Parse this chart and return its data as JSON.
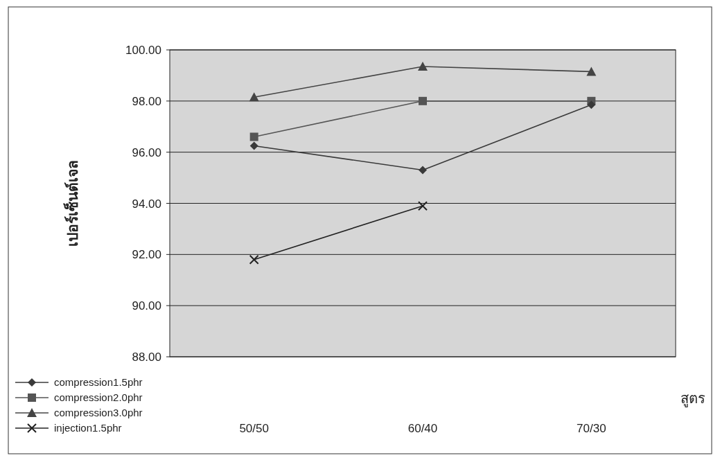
{
  "chart_data": {
    "type": "line",
    "xlabel": "สูตร",
    "ylabel": "เปอร์เซ็นต์เจล",
    "categories": [
      "50/50",
      "60/40",
      "70/30"
    ],
    "series": [
      {
        "name": "compression1.5phr",
        "color": "#3a3a3a",
        "marker": "diamond",
        "values": [
          96.25,
          95.3,
          97.85
        ]
      },
      {
        "name": "compression2.0phr",
        "color": "#555555",
        "marker": "square",
        "values": [
          96.6,
          98.0,
          98.0
        ]
      },
      {
        "name": "compression3.0phr",
        "color": "#444444",
        "marker": "triangle",
        "values": [
          98.15,
          99.35,
          99.15
        ]
      },
      {
        "name": "injection1.5phr",
        "color": "#222222",
        "marker": "cross",
        "values": [
          91.8,
          93.9,
          null
        ]
      }
    ],
    "ylim": [
      88,
      100
    ],
    "yticks": [
      {
        "value": 88,
        "label": "88.00"
      },
      {
        "value": 90,
        "label": "90.00"
      },
      {
        "value": 92,
        "label": "92.00"
      },
      {
        "value": 94,
        "label": "94.00"
      },
      {
        "value": 96,
        "label": "96.00"
      },
      {
        "value": 98,
        "label": "98.00"
      },
      {
        "value": 100,
        "label": "100.00"
      }
    ],
    "grid": "y",
    "legend": "bottom left",
    "line_style": "solid"
  }
}
